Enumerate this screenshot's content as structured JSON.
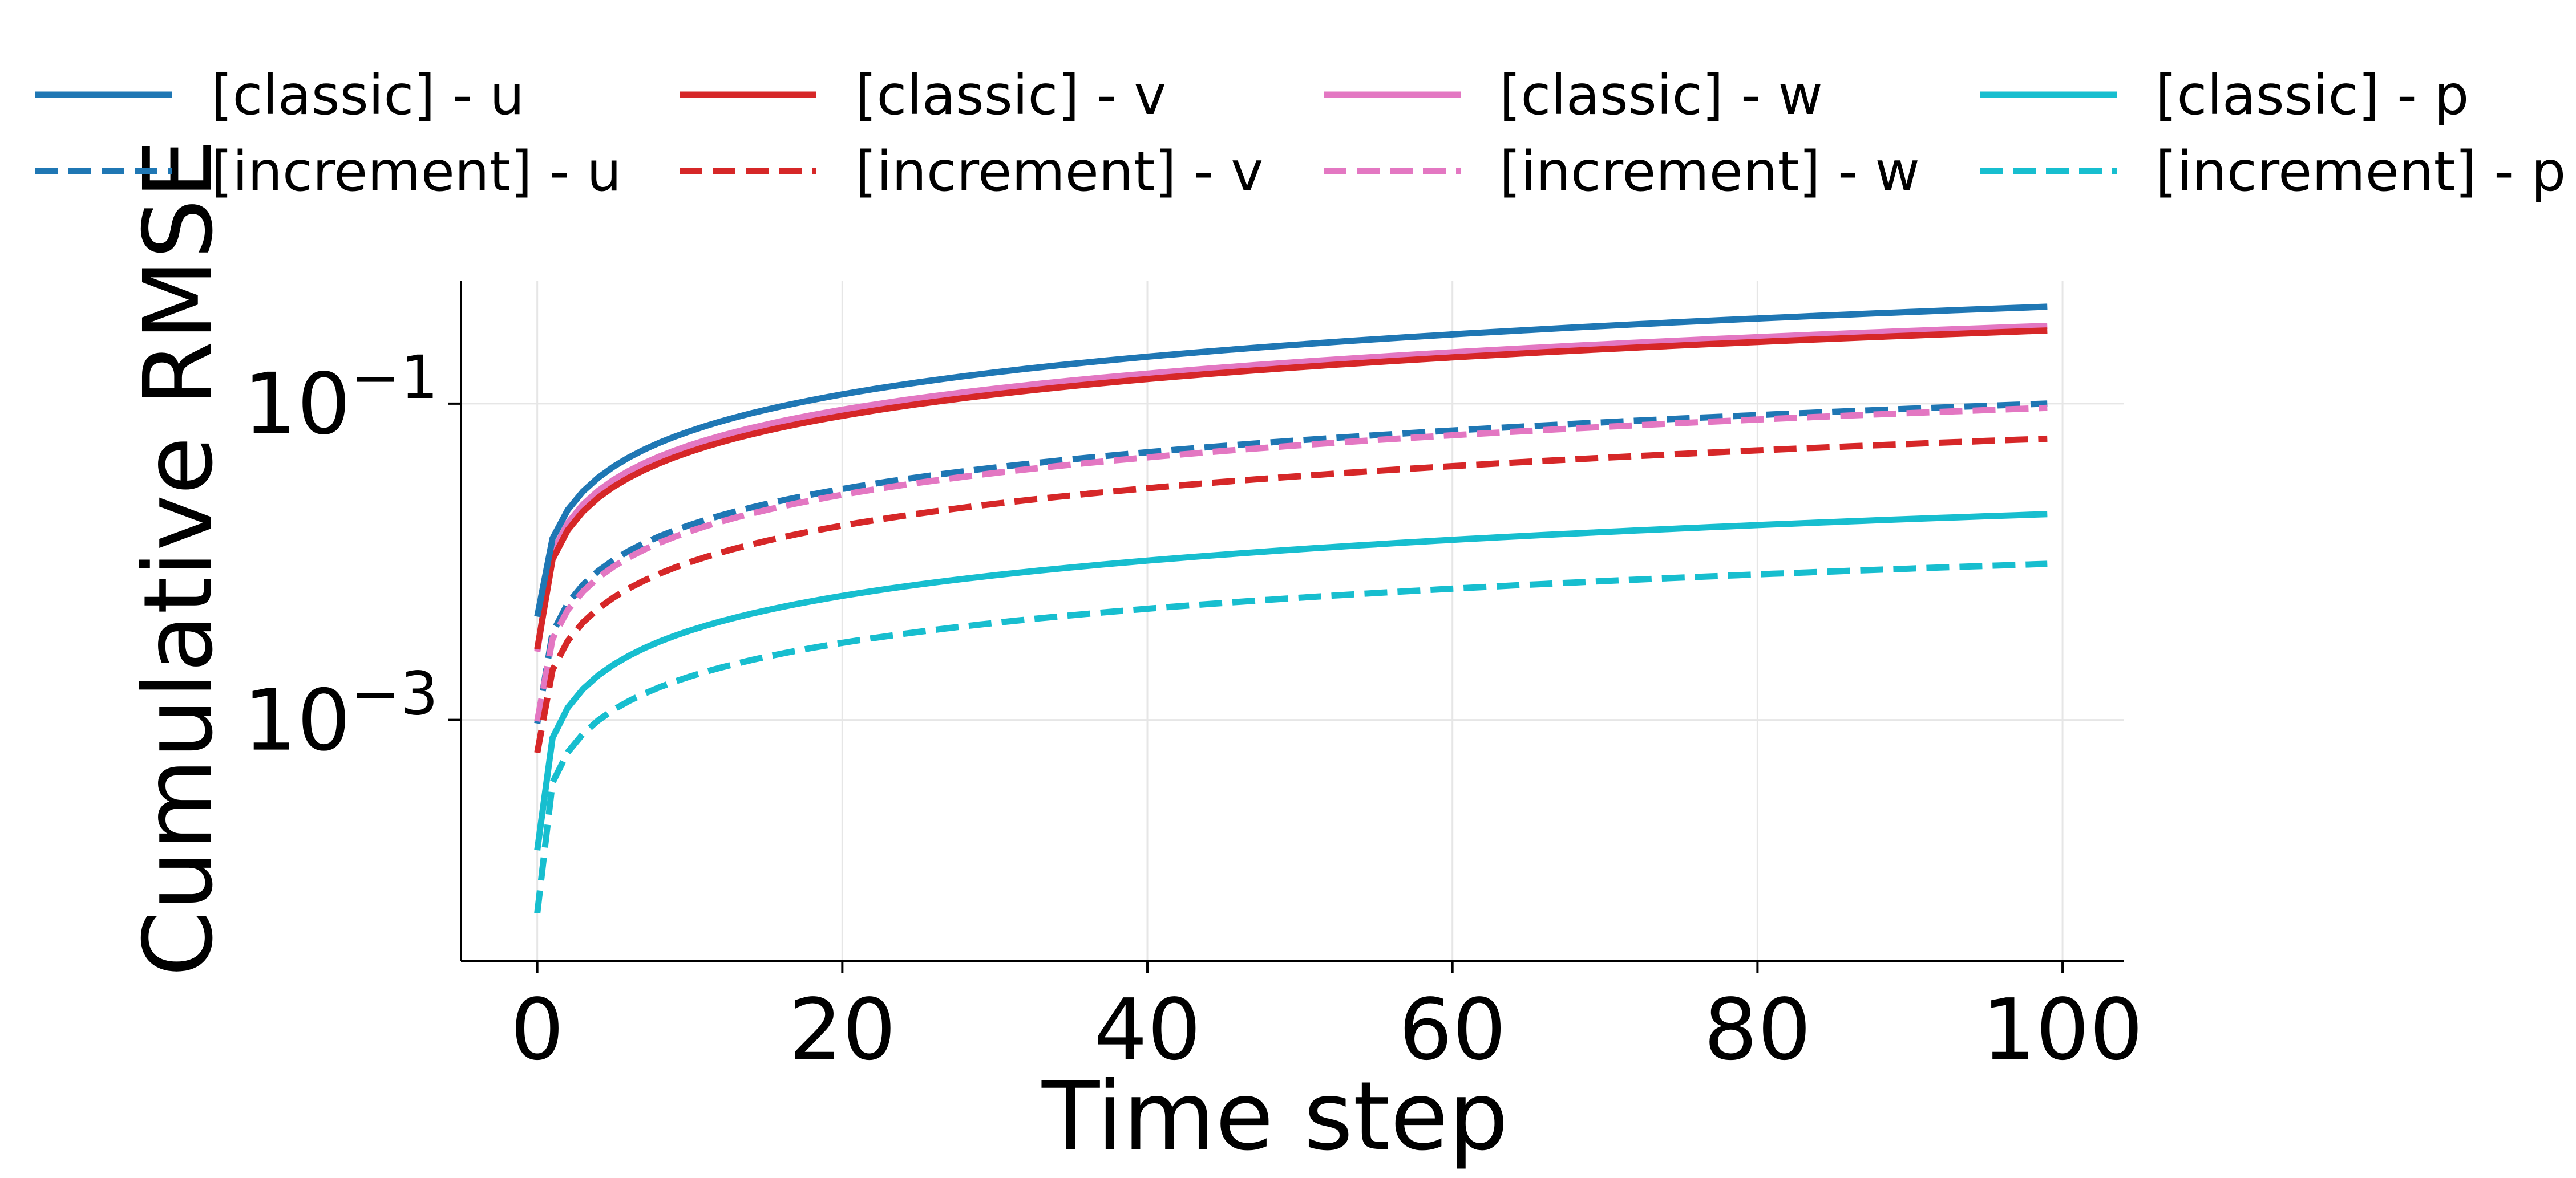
{
  "chart_data": {
    "type": "line",
    "title": "",
    "xlabel": "Time step",
    "ylabel": "Cumulative RMSE",
    "xlim": [
      -5,
      104
    ],
    "ylim": [
      3e-05,
      0.6
    ],
    "yscale": "log",
    "grid": true,
    "legend_position": "top",
    "legend_columns": 4,
    "x_ticks": [
      0,
      20,
      40,
      60,
      80,
      100
    ],
    "x_tick_labels": [
      "0",
      "20",
      "40",
      "60",
      "80",
      "100"
    ],
    "y_ticks": [
      {
        "value": 0.1,
        "base": "10",
        "exponent": "−1"
      },
      {
        "value": 0.001,
        "base": "10",
        "exponent": "−3"
      }
    ],
    "x_range": [
      0,
      99
    ],
    "x_step": 1,
    "series": [
      {
        "name": "[classic] - u",
        "color": "#1f77b4",
        "dash": "solid",
        "start": 0.0045,
        "end": 0.41,
        "exponent": 0.98
      },
      {
        "name": "[classic] - v",
        "color": "#d62728",
        "dash": "solid",
        "start": 0.0028,
        "end": 0.29,
        "exponent": 1.01
      },
      {
        "name": "[classic] - w",
        "color": "#e377c2",
        "dash": "solid",
        "start": 0.0027,
        "end": 0.31,
        "exponent": 1.03
      },
      {
        "name": "[classic] - p",
        "color": "#17becf",
        "dash": "solid",
        "start": 0.00015,
        "end": 0.02,
        "exponent": 1.06
      },
      {
        "name": "[increment] - u",
        "color": "#1f77b4",
        "dash": "dashed",
        "start": 0.00095,
        "end": 0.1,
        "exponent": 1.01
      },
      {
        "name": "[increment] - v",
        "color": "#d62728",
        "dash": "dashed",
        "start": 0.00062,
        "end": 0.06,
        "exponent": 0.99
      },
      {
        "name": "[increment] - w",
        "color": "#e377c2",
        "dash": "dashed",
        "start": 0.00098,
        "end": 0.094,
        "exponent": 0.99
      },
      {
        "name": "[increment] - p",
        "color": "#17becf",
        "dash": "dashed",
        "start": 6e-05,
        "end": 0.0097,
        "exponent": 1.1
      }
    ],
    "legend": [
      [
        "[classic] - u",
        "[classic] - v",
        "[classic] - w",
        "[classic] - p"
      ],
      [
        "[increment] - u",
        "[increment] - v",
        "[increment] - w",
        "[increment] - p"
      ]
    ]
  }
}
